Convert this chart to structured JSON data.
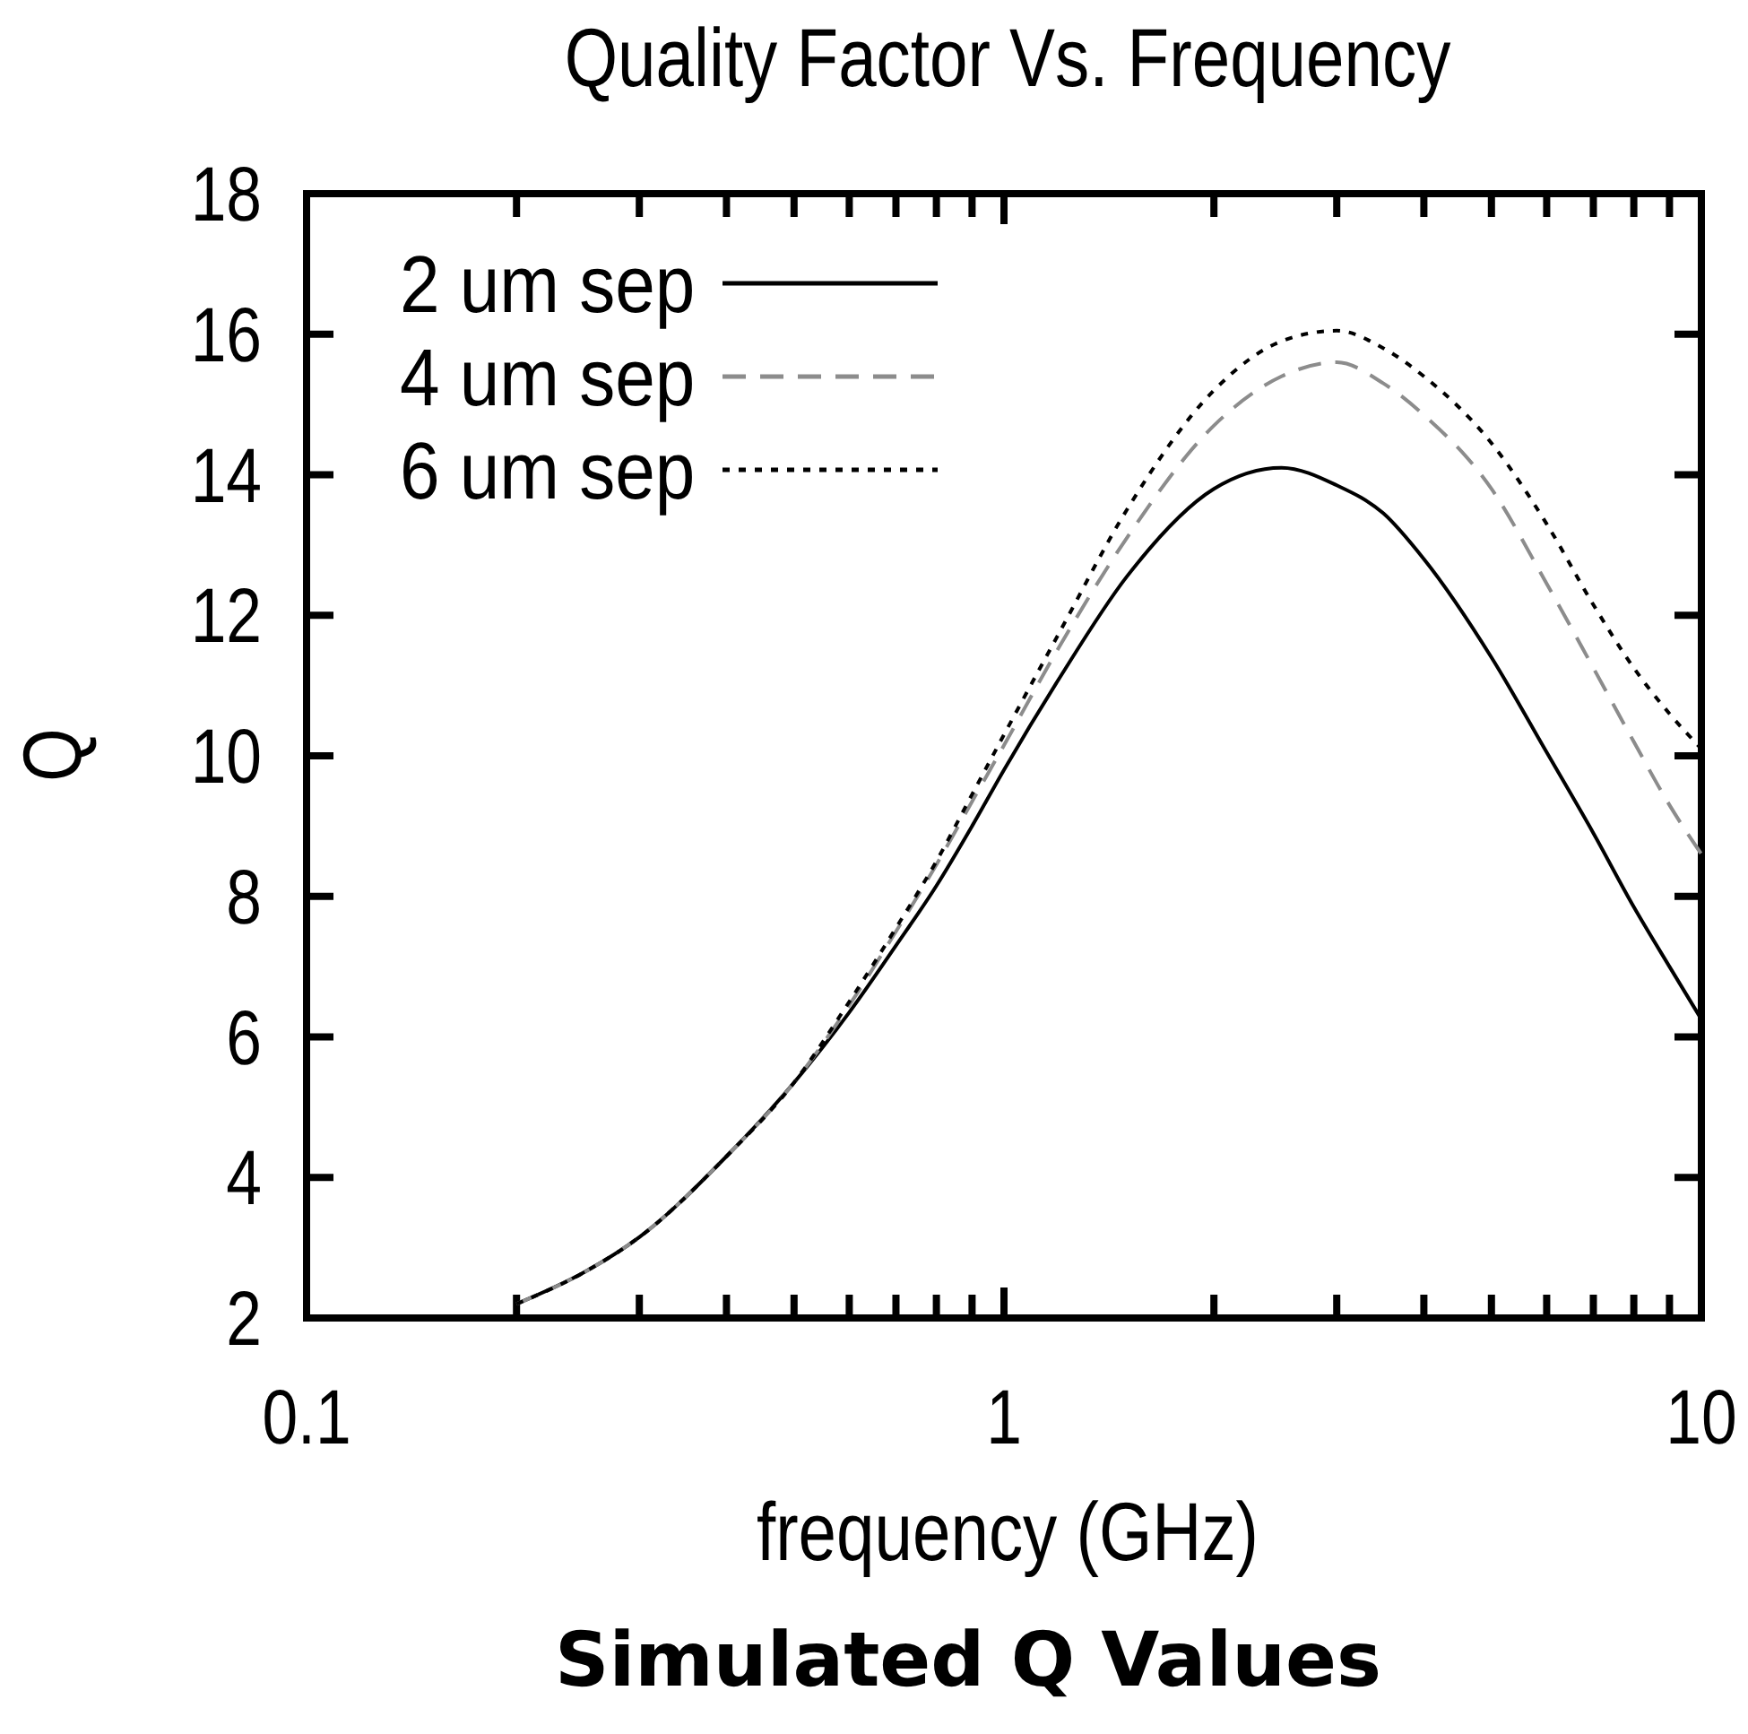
{
  "chart_data": {
    "type": "line",
    "title": "Quality Factor Vs. Frequency",
    "xlabel": "frequency (GHz)",
    "ylabel": "Q",
    "annotations": [
      "Simulated Q Values"
    ],
    "log": "x",
    "xlim": [
      0.1,
      10
    ],
    "xticks": [
      0.1,
      {
        "value": 0.2,
        "label": null
      },
      {
        "value": 0.3,
        "label": null
      },
      {
        "value": 0.4,
        "label": null
      },
      {
        "value": 0.5,
        "label": null
      },
      {
        "value": 0.6,
        "label": null
      },
      {
        "value": 0.7,
        "label": null
      },
      {
        "value": 0.8,
        "label": null
      },
      {
        "value": 0.9,
        "label": null
      },
      1,
      {
        "value": 2,
        "label": null
      },
      {
        "value": 3,
        "label": null
      },
      {
        "value": 4,
        "label": null
      },
      {
        "value": 5,
        "label": null
      },
      {
        "value": 6,
        "label": null
      },
      {
        "value": 7,
        "label": null
      },
      {
        "value": 8,
        "label": null
      },
      {
        "value": 9,
        "label": null
      },
      10
    ],
    "ylim": [
      2,
      18
    ],
    "yticks": [
      2,
      4,
      6,
      8,
      10,
      12,
      14,
      16,
      18
    ],
    "legend": "top left",
    "x": [
      0.2,
      0.25,
      0.3,
      0.4,
      0.5,
      0.6,
      0.7,
      0.8,
      0.9,
      1,
      1.2,
      1.5,
      2,
      2.5,
      3,
      3.5,
      4,
      5,
      6,
      7,
      8,
      9,
      10
    ],
    "series": [
      {
        "name": "2 um sep",
        "color": "#000000",
        "line_style": "solid",
        "values": [
          2.2,
          2.65,
          3.15,
          4.3,
          5.35,
          6.35,
          7.3,
          8.15,
          9.0,
          9.8,
          11.1,
          12.55,
          13.8,
          14.1,
          13.85,
          13.45,
          12.8,
          11.4,
          10.05,
          8.9,
          7.85,
          7.0,
          6.25
        ]
      },
      {
        "name": "4 um sep",
        "color": "#8c8c8c",
        "line_style": "dashed",
        "values": [
          2.2,
          2.65,
          3.15,
          4.3,
          5.35,
          6.45,
          7.5,
          8.45,
          9.35,
          10.15,
          11.55,
          13.1,
          14.7,
          15.4,
          15.6,
          15.3,
          14.85,
          13.8,
          12.45,
          11.25,
          10.2,
          9.3,
          8.6
        ]
      },
      {
        "name": "6 um sep",
        "color": "#000000",
        "line_style": "dotted",
        "values": [
          2.2,
          2.65,
          3.15,
          4.3,
          5.35,
          6.5,
          7.55,
          8.5,
          9.45,
          10.3,
          11.75,
          13.5,
          15.2,
          15.9,
          16.05,
          15.8,
          15.4,
          14.45,
          13.3,
          12.15,
          11.25,
          10.6,
          10.1
        ]
      }
    ]
  }
}
